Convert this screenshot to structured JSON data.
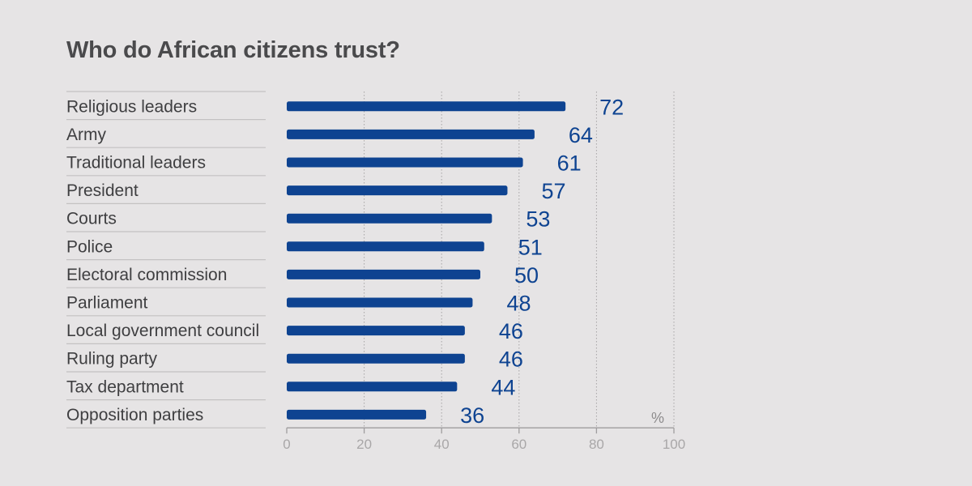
{
  "chart_data": {
    "type": "bar",
    "orientation": "horizontal",
    "title": "Who do African citizens trust?",
    "unit": "%",
    "xlim": [
      0,
      100
    ],
    "xticks": [
      "0",
      "20",
      "40",
      "60",
      "80",
      "100"
    ],
    "categories": [
      "Religious leaders",
      "Army",
      "Traditional leaders",
      "President",
      "Courts",
      "Police",
      "Electoral commission",
      "Parliament",
      "Local government council",
      "Ruling party",
      "Tax department",
      "Opposition parties"
    ],
    "values": [
      72,
      64,
      61,
      57,
      53,
      51,
      50,
      48,
      46,
      46,
      44,
      36
    ],
    "value_labels": [
      "72",
      "64",
      "61",
      "57",
      "53",
      "51",
      "50",
      "48",
      "46",
      "46",
      "44",
      "36"
    ],
    "bar_color": "#0e4391"
  }
}
